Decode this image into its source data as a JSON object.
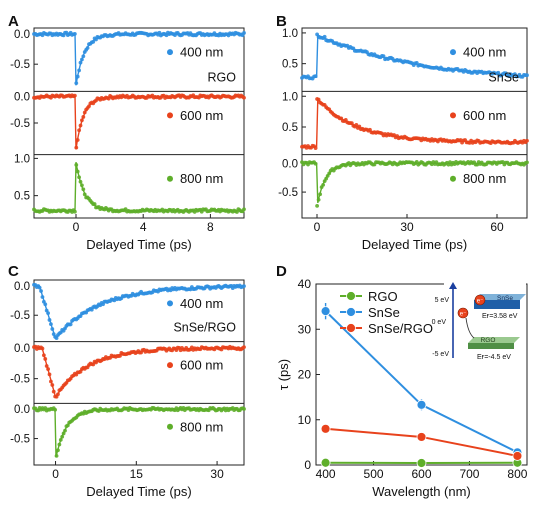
{
  "figure": {
    "panel_letters": [
      "A",
      "B",
      "C",
      "D"
    ]
  },
  "colors": {
    "blue": "#2f8fe0",
    "red": "#e8421c",
    "green": "#5eae2a",
    "axis": "#222222",
    "inset_bg": "#eef3ec"
  },
  "chart_data": [
    {
      "type": "scatter",
      "panel": "A",
      "xlabel": "Delayed Time (ps)",
      "ylabel": "",
      "xlim": [
        -2.5,
        10
      ],
      "xticks": [
        0,
        4,
        8
      ],
      "annotation": "RGO",
      "grid": false,
      "series": [
        {
          "name": "400 nm",
          "color": "#2f8fe0",
          "ylim": [
            -0.95,
            0.1
          ],
          "yticks": [
            0.0,
            -0.5
          ],
          "kind": "decay_from_min",
          "peak": -0.85,
          "tau": 0.5,
          "baseline": 0.0,
          "pre": 0.0
        },
        {
          "name": "600 nm",
          "color": "#e8421c",
          "ylim": [
            -1.1,
            0.1
          ],
          "yticks": [
            0.0,
            -0.5
          ],
          "kind": "decay_from_min",
          "peak": -1.0,
          "tau": 0.45,
          "baseline": 0.0,
          "pre": 0.0
        },
        {
          "name": "800 nm",
          "color": "#5eae2a",
          "ylim": [
            0.2,
            1.05
          ],
          "yticks": [
            1.0,
            0.5
          ],
          "kind": "decay_from_max",
          "peak": 0.95,
          "tau": 0.5,
          "baseline": 0.3,
          "pre": 0.3
        }
      ]
    },
    {
      "type": "scatter",
      "panel": "B",
      "xlabel": "Delayed Time (ps)",
      "ylabel": "",
      "xlim": [
        -5,
        70
      ],
      "xticks": [
        0,
        30,
        60
      ],
      "annotation": "SnSe",
      "grid": false,
      "series": [
        {
          "name": "400 nm",
          "color": "#2f8fe0",
          "ylim": [
            0.05,
            1.08
          ],
          "yticks": [
            1.0,
            0.5
          ],
          "kind": "decay_from_max",
          "peak": 0.97,
          "tau": 34,
          "baseline": 0.2,
          "pre": 0.28
        },
        {
          "name": "600 nm",
          "color": "#e8421c",
          "ylim": [
            0.05,
            1.08
          ],
          "yticks": [
            1.0,
            0.5
          ],
          "kind": "decay_from_max",
          "peak": 0.97,
          "tau": 13,
          "baseline": 0.25,
          "pre": 0.18
        },
        {
          "name": "800 nm",
          "color": "#5eae2a",
          "ylim": [
            -0.95,
            0.15
          ],
          "yticks": [
            0.0,
            -0.5
          ],
          "kind": "decay_from_min",
          "peak": -0.75,
          "tau": 2.8,
          "baseline": 0.0,
          "pre": 0.0
        }
      ]
    },
    {
      "type": "scatter",
      "panel": "C",
      "xlabel": "Delayed Time (ps)",
      "ylabel": "",
      "xlim": [
        -4,
        35
      ],
      "xticks": [
        0,
        15,
        30
      ],
      "annotation": "SnSe/RGO",
      "grid": false,
      "series": [
        {
          "name": "400 nm",
          "color": "#2f8fe0",
          "ylim": [
            -0.95,
            0.1
          ],
          "yticks": [
            0.0,
            -0.5
          ],
          "kind": "rise_decay",
          "peak": -0.9,
          "tau": 8,
          "baseline": 0.0,
          "pre": 0.0,
          "rise_start": -3
        },
        {
          "name": "600 nm",
          "color": "#e8421c",
          "ylim": [
            -0.9,
            0.1
          ],
          "yticks": [
            0.0,
            -0.5
          ],
          "kind": "rise_decay",
          "peak": -0.8,
          "tau": 6,
          "baseline": 0.0,
          "pre": 0.0,
          "rise_start": -2.5
        },
        {
          "name": "800 nm",
          "color": "#5eae2a",
          "ylim": [
            -0.95,
            0.1
          ],
          "yticks": [
            0.0,
            -0.5
          ],
          "kind": "decay_from_min",
          "peak": -0.85,
          "tau": 2,
          "baseline": 0.0,
          "pre": 0.0
        }
      ]
    },
    {
      "type": "line",
      "panel": "D",
      "xlabel": "Wavelength (nm)",
      "ylabel": "τ (ps)",
      "xlim": [
        380,
        820
      ],
      "ylim": [
        0,
        40
      ],
      "xticks": [
        400,
        500,
        600,
        700,
        800
      ],
      "yticks": [
        0,
        10,
        20,
        30,
        40
      ],
      "legend_position": "top-left",
      "grid": false,
      "x": [
        400,
        600,
        800
      ],
      "series": [
        {
          "name": "RGO",
          "color": "#5eae2a",
          "values": [
            0.5,
            0.45,
            0.5
          ],
          "errors": [
            0.2,
            0.2,
            0.2
          ]
        },
        {
          "name": "SnSe",
          "color": "#2f8fe0",
          "values": [
            34,
            13.3,
            2.8
          ],
          "errors": [
            1.8,
            1.2,
            0.3
          ]
        },
        {
          "name": "SnSe/RGO",
          "color": "#e8421c",
          "values": [
            8,
            6.2,
            2
          ],
          "errors": [
            0.4,
            0.4,
            0.2
          ]
        }
      ],
      "inset": {
        "level_top": "5 eV",
        "level_mid": "0 eV",
        "level_bottom": "-5 eV",
        "block_top_label": "SnSe",
        "block_top_energy": "Eғ=3.58 eV",
        "block_bottom_label": "RGO",
        "block_bottom_energy": "Eғ=-4.5 eV",
        "electron_symbol": "e⁻"
      }
    }
  ]
}
